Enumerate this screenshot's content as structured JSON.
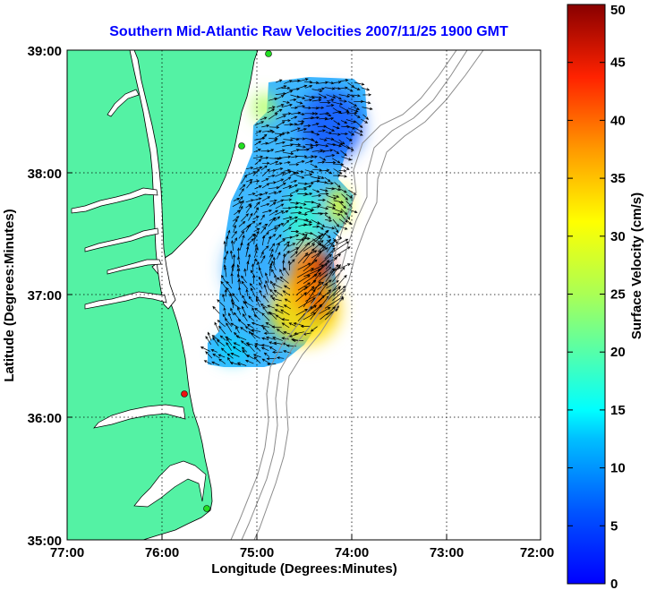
{
  "title": "Southern Mid-Atlantic Raw Velocities 2007/11/25 1900 GMT",
  "xaxis_label": "Longitude (Degrees:Minutes)",
  "yaxis_label": "Latitude (Degrees:Minutes)",
  "x_ticks": [
    "77:00",
    "76:00",
    "75:00",
    "74:00",
    "73:00",
    "72:00"
  ],
  "y_ticks": [
    "39:00",
    "38:00",
    "37:00",
    "36:00",
    "35:00"
  ],
  "colorbar": {
    "label": "Surface Velocity (cm/s)",
    "ticks": [
      "0",
      "5",
      "10",
      "15",
      "20",
      "25",
      "30",
      "35",
      "40",
      "45",
      "50"
    ],
    "range": [
      0,
      50
    ],
    "colormap": "jet"
  },
  "colors": {
    "title": "#0000ff",
    "land": "#54f2a4",
    "coastline": "#000000",
    "bathymetry": "#8c8c8c",
    "grid": "#000000",
    "station_green": "#22dd22",
    "station_red": "#ee1111"
  },
  "map_extent": {
    "lon": [
      -77,
      -72
    ],
    "lat": [
      35,
      39
    ]
  }
}
